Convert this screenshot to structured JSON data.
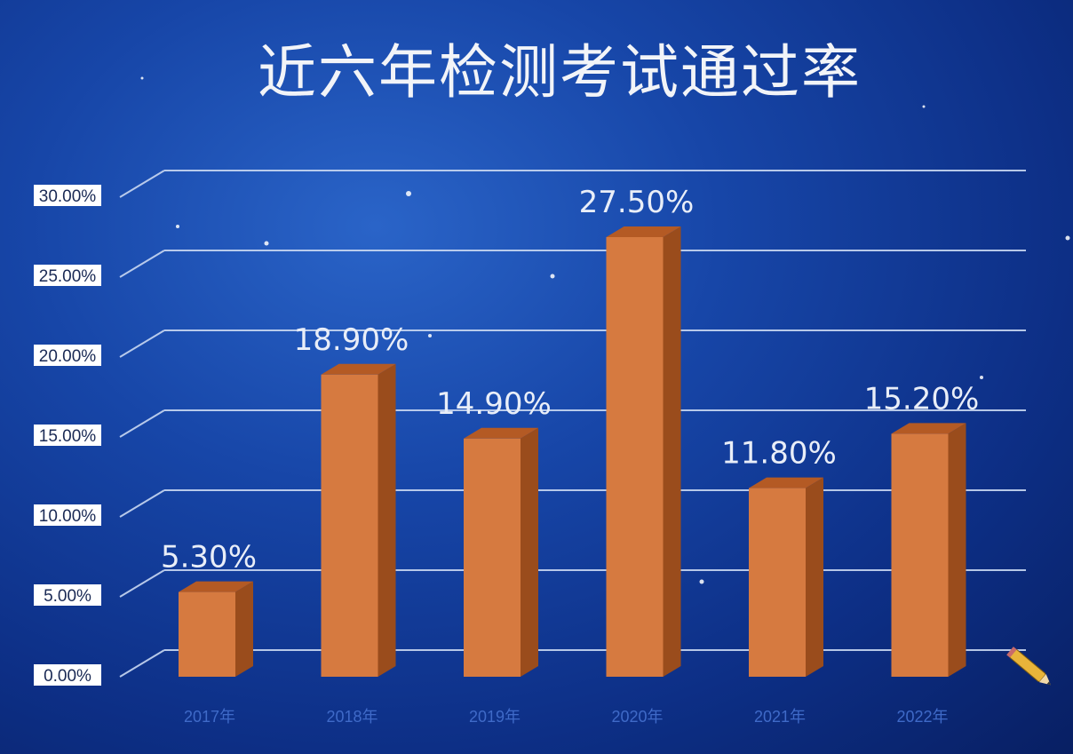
{
  "chart_data": {
    "type": "bar",
    "title": "近六年检测考试通过率",
    "categories": [
      "2017年",
      "2018年",
      "2019年",
      "2020年",
      "2021年",
      "2022年"
    ],
    "values": [
      5.3,
      18.9,
      14.9,
      27.5,
      11.8,
      15.2
    ],
    "value_labels": [
      "5.30%",
      "18.90%",
      "14.90%",
      "27.50%",
      "11.80%",
      "15.20%"
    ],
    "y_ticks": [
      "0.00%",
      "5.00%",
      "10.00%",
      "15.00%",
      "20.00%",
      "25.00%",
      "30.00%"
    ],
    "ylim": [
      0,
      30
    ],
    "grid": true,
    "colors": {
      "bar_front": "#d67a40",
      "bar_side": "#9a4c1c",
      "bar_top": "#b45a24",
      "grid": "#c9d8f2",
      "background": "#1746a8"
    }
  }
}
